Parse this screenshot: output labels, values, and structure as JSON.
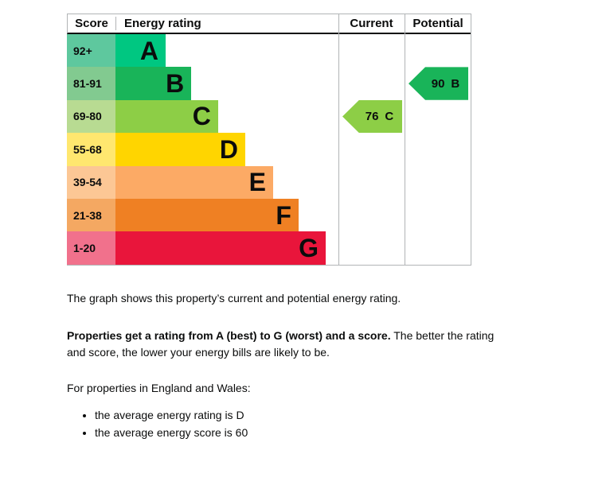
{
  "chart_data": {
    "type": "bar",
    "description": "Energy efficiency rating chart",
    "headers": {
      "score": "Score",
      "rating": "Energy rating",
      "current": "Current",
      "potential": "Potential"
    },
    "bands": [
      {
        "range": "92+",
        "letter": "A",
        "color": "#00c781",
        "tint": "#5ec89e",
        "bar_pct": 22.5
      },
      {
        "range": "81-91",
        "letter": "B",
        "color": "#19b459",
        "tint": "#82ca90",
        "bar_pct": 34.0
      },
      {
        "range": "69-80",
        "letter": "C",
        "color": "#8dce46",
        "tint": "#b8db92",
        "bar_pct": 46.0
      },
      {
        "range": "55-68",
        "letter": "D",
        "color": "#ffd500",
        "tint": "#ffe76f",
        "bar_pct": 58.2
      },
      {
        "range": "39-54",
        "letter": "E",
        "color": "#fcaa65",
        "tint": "#fcc795",
        "bar_pct": 70.7
      },
      {
        "range": "21-38",
        "letter": "F",
        "color": "#ef8023",
        "tint": "#f4a862",
        "bar_pct": 82.1
      },
      {
        "range": "1-20",
        "letter": "G",
        "color": "#e9153b",
        "tint": "#f1718c",
        "bar_pct": 94.3
      }
    ],
    "current": {
      "score": "76",
      "rating": "C"
    },
    "potential": {
      "score": "90",
      "rating": "B"
    },
    "layout": {
      "border_color": "#b1b4b6",
      "header_underline_color": "#0b0c0c",
      "grid": "off",
      "legend": "none"
    }
  },
  "text": {
    "intro": "The graph shows this property’s current and potential energy rating.",
    "rating_bold": "Properties get a rating from A (best) to G (worst) and a score.",
    "rating_rest": " The better the rating and score, the lower your energy bills are likely to be.",
    "region": "For properties in England and Wales:",
    "bullets": [
      "the average energy rating is D",
      "the average energy score is 60"
    ]
  }
}
